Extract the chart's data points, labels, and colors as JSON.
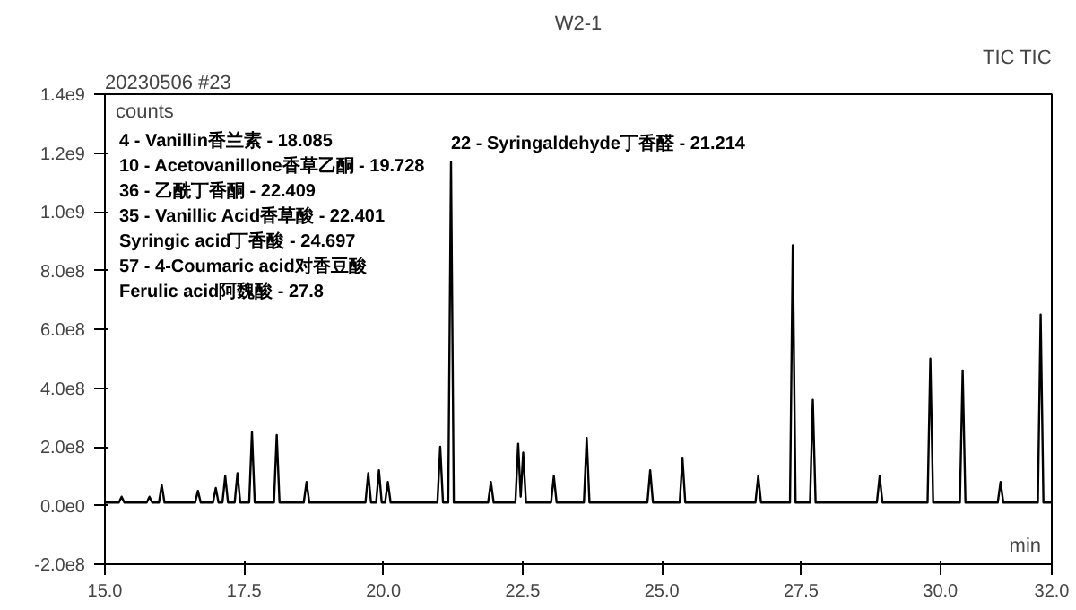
{
  "chart_data": {
    "type": "line",
    "title": "W2-1",
    "xlabel": "min",
    "ylabel": "counts",
    "annotations": [
      "20230506 #23",
      "TIC TIC",
      {
        "text": "22 - Syringaldehyde丁香醛 - 21.214",
        "x": 21.214,
        "y": 1170000000.0
      },
      "4 - Vanillin香兰素 - 18.085",
      "10 - Acetovanillone香草乙酮 - 19.728",
      "36 - 乙酰丁香酮 - 22.409",
      "35 - Vanillic Acid香草酸 - 22.401",
      "Syringic acid丁香酸 - 24.697",
      "57 - 4-Coumaric acid对香豆酸",
      "Ferulic acid阿魏酸 - 27.8"
    ],
    "series": [
      {
        "color": "#000000",
        "x": [
          15.0,
          15.25,
          15.3,
          15.35,
          15.75,
          15.8,
          15.85,
          15.97,
          16.02,
          16.07,
          16.62,
          16.67,
          16.72,
          16.94,
          16.99,
          17.04,
          17.11,
          17.16,
          17.21,
          17.33,
          17.38,
          17.43,
          17.59,
          17.64,
          17.69,
          18.035,
          18.085,
          18.135,
          18.57,
          18.62,
          18.67,
          19.678,
          19.728,
          19.778,
          19.87,
          19.92,
          19.97,
          20.03,
          20.08,
          20.13,
          20.97,
          21.02,
          21.07,
          21.164,
          21.214,
          21.264,
          21.88,
          21.93,
          21.98,
          22.37,
          22.42,
          22.465,
          22.51,
          22.56,
          23.01,
          23.06,
          23.11,
          23.6,
          23.65,
          23.7,
          24.74,
          24.79,
          24.84,
          25.32,
          25.37,
          25.42,
          26.68,
          26.73,
          26.78,
          27.3,
          27.35,
          27.4,
          27.66,
          27.71,
          27.76,
          28.86,
          28.91,
          28.96,
          29.77,
          29.82,
          29.87,
          30.35,
          30.4,
          30.45,
          31.03,
          31.08,
          31.13,
          31.75,
          31.8,
          31.85,
          32.0
        ],
        "values": [
          10000000.0,
          10000000.0,
          30000000.0,
          10000000.0,
          10000000.0,
          30000000.0,
          10000000.0,
          10000000.0,
          70000000.0,
          10000000.0,
          10000000.0,
          50000000.0,
          10000000.0,
          10000000.0,
          60000000.0,
          10000000.0,
          10000000.0,
          100000000.0,
          10000000.0,
          10000000.0,
          110000000.0,
          10000000.0,
          10000000.0,
          250000000.0,
          10000000.0,
          10000000.0,
          240000000.0,
          10000000.0,
          10000000.0,
          80000000.0,
          10000000.0,
          10000000.0,
          110000000.0,
          10000000.0,
          10000000.0,
          120000000.0,
          10000000.0,
          10000000.0,
          80000000.0,
          10000000.0,
          10000000.0,
          200000000.0,
          10000000.0,
          10000000.0,
          1170000000.0,
          10000000.0,
          10000000.0,
          80000000.0,
          10000000.0,
          10000000.0,
          210000000.0,
          30000000.0,
          180000000.0,
          10000000.0,
          10000000.0,
          100000000.0,
          10000000.0,
          10000000.0,
          230000000.0,
          10000000.0,
          10000000.0,
          120000000.0,
          10000000.0,
          10000000.0,
          160000000.0,
          10000000.0,
          10000000.0,
          100000000.0,
          10000000.0,
          10000000.0,
          886000000.0,
          10000000.0,
          10000000.0,
          360000000.0,
          10000000.0,
          10000000.0,
          100000000.0,
          10000000.0,
          10000000.0,
          500000000.0,
          10000000.0,
          10000000.0,
          460000000.0,
          10000000.0,
          10000000.0,
          80000000.0,
          10000000.0,
          10000000.0,
          650000000.0,
          10000000.0,
          10000000.0
        ]
      }
    ],
    "xlim": [
      15.0,
      32.0
    ],
    "ylim": [
      -200000000.0,
      1400000000.0
    ],
    "xticks": [
      {
        "value": 15,
        "label": "15.0"
      },
      {
        "value": 17.5,
        "label": "17.5"
      },
      {
        "value": 20,
        "label": "20.0"
      },
      {
        "value": 22.5,
        "label": "22.5"
      },
      {
        "value": 25,
        "label": "25.0"
      },
      {
        "value": 27.5,
        "label": "27.5"
      },
      {
        "value": 30,
        "label": "30.0"
      },
      {
        "value": 32,
        "label": "32.0"
      }
    ],
    "yticks": [
      {
        "value": -200000000.0,
        "label": "-2.0e8"
      },
      {
        "value": 0,
        "label": "0.0e0"
      },
      {
        "value": 200000000.0,
        "label": "2.0e8"
      },
      {
        "value": 400000000.0,
        "label": "4.0e8"
      },
      {
        "value": 600000000.0,
        "label": "6.0e8"
      },
      {
        "value": 800000000.0,
        "label": "8.0e8"
      },
      {
        "value": 1000000000.0,
        "label": "1.0e9"
      },
      {
        "value": 1200000000.0,
        "label": "1.2e9"
      },
      {
        "value": 1400000000.0,
        "label": "1.4e9"
      }
    ],
    "grid": false
  }
}
